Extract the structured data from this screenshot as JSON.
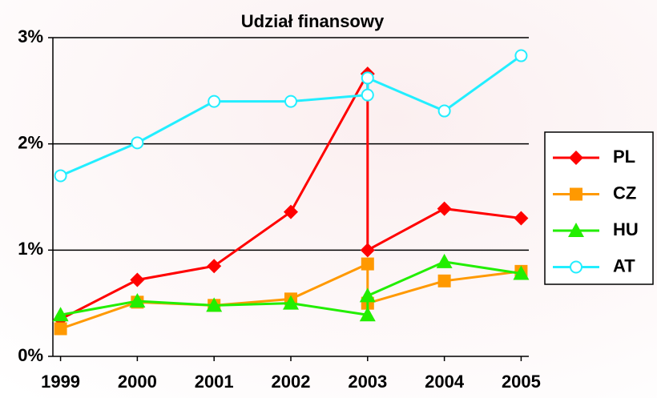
{
  "chart_data": {
    "type": "line",
    "title": "Udział finansowy",
    "x": [
      1999,
      2000,
      2001,
      2002,
      2003,
      2003,
      2004,
      2005
    ],
    "xlim": [
      1998.9,
      2005.1
    ],
    "xticks": [
      1999,
      2000,
      2001,
      2002,
      2003,
      2004,
      2005
    ],
    "ylim": [
      0,
      3
    ],
    "yticks": [
      {
        "value": 0,
        "label": "0%"
      },
      {
        "value": 1,
        "label": "1%"
      },
      {
        "value": 2,
        "label": "2%"
      },
      {
        "value": 3,
        "label": "3%"
      }
    ],
    "grid": true,
    "legend": "right",
    "series": [
      {
        "name": "PL",
        "color": "#ff0000",
        "marker": "diamond",
        "values": [
          0.35,
          0.72,
          0.85,
          1.36,
          2.66,
          1.0,
          1.39,
          1.3
        ]
      },
      {
        "name": "CZ",
        "color": "#ff9900",
        "marker": "square",
        "values": [
          0.26,
          0.51,
          0.48,
          0.54,
          0.87,
          0.5,
          0.71,
          0.8
        ]
      },
      {
        "name": "HU",
        "color": "#22ee00",
        "marker": "triangle",
        "values": [
          0.39,
          0.52,
          0.48,
          0.5,
          0.39,
          0.57,
          0.89,
          0.78
        ]
      },
      {
        "name": "AT",
        "color": "#22eeff",
        "marker": "circle",
        "values": [
          1.7,
          2.01,
          2.4,
          2.4,
          2.46,
          2.62,
          2.31,
          2.83
        ]
      }
    ]
  }
}
